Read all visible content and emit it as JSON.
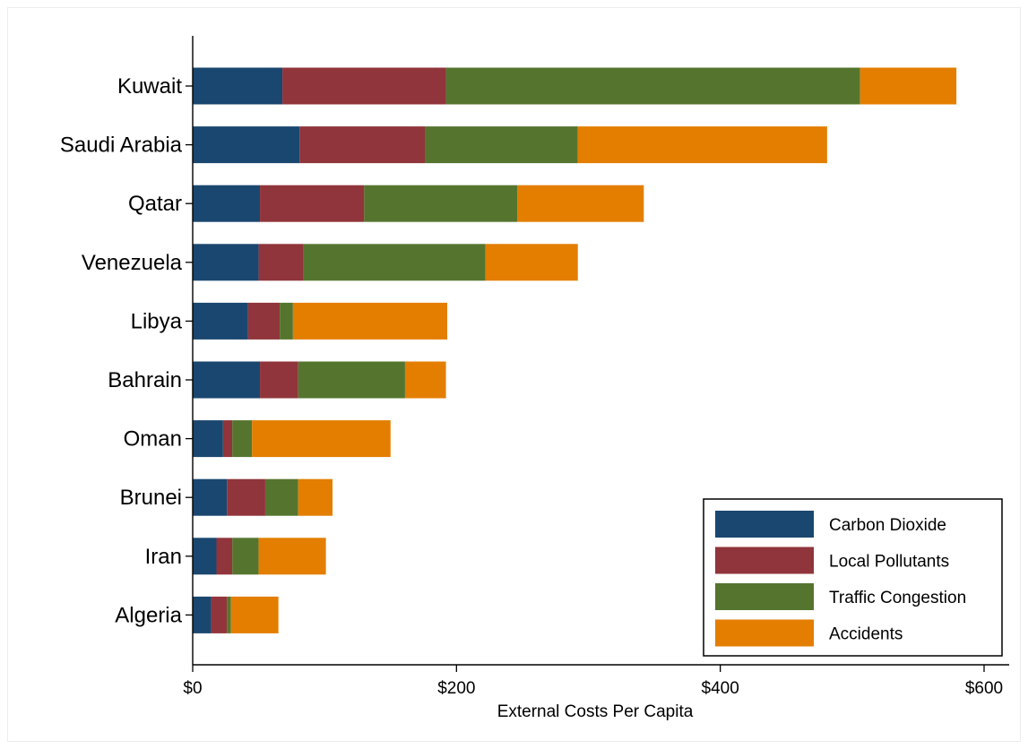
{
  "chart_data": {
    "type": "bar",
    "orientation": "horizontal",
    "stacked": true,
    "title": "",
    "xlabel": "External Costs Per Capita",
    "ylabel": "",
    "xlim": [
      0,
      620
    ],
    "x_ticks": [
      0,
      200,
      400,
      600
    ],
    "x_tick_labels": [
      "$0",
      "$200",
      "$400",
      "$600"
    ],
    "grid": false,
    "legend_position": "bottom-right",
    "categories": [
      "Kuwait",
      "Saudi Arabia",
      "Qatar",
      "Venezuela",
      "Libya",
      "Bahrain",
      "Oman",
      "Brunei",
      "Iran",
      "Algeria"
    ],
    "series": [
      {
        "name": "Carbon Dioxide",
        "color": "#1a476f",
        "values": [
          68,
          81,
          51,
          50,
          42,
          51,
          23,
          26,
          18,
          14
        ]
      },
      {
        "name": "Local Pollutants",
        "color": "#90353b",
        "values": [
          124,
          95,
          79,
          34,
          24,
          29,
          7,
          29,
          12,
          12
        ]
      },
      {
        "name": "Traffic Congestion",
        "color": "#55752f",
        "values": [
          314,
          116,
          116,
          138,
          10,
          81,
          15,
          25,
          20,
          3
        ]
      },
      {
        "name": "Accidents",
        "color": "#e37e00",
        "values": [
          73,
          189,
          96,
          70,
          117,
          31,
          105,
          26,
          51,
          36
        ]
      }
    ]
  }
}
